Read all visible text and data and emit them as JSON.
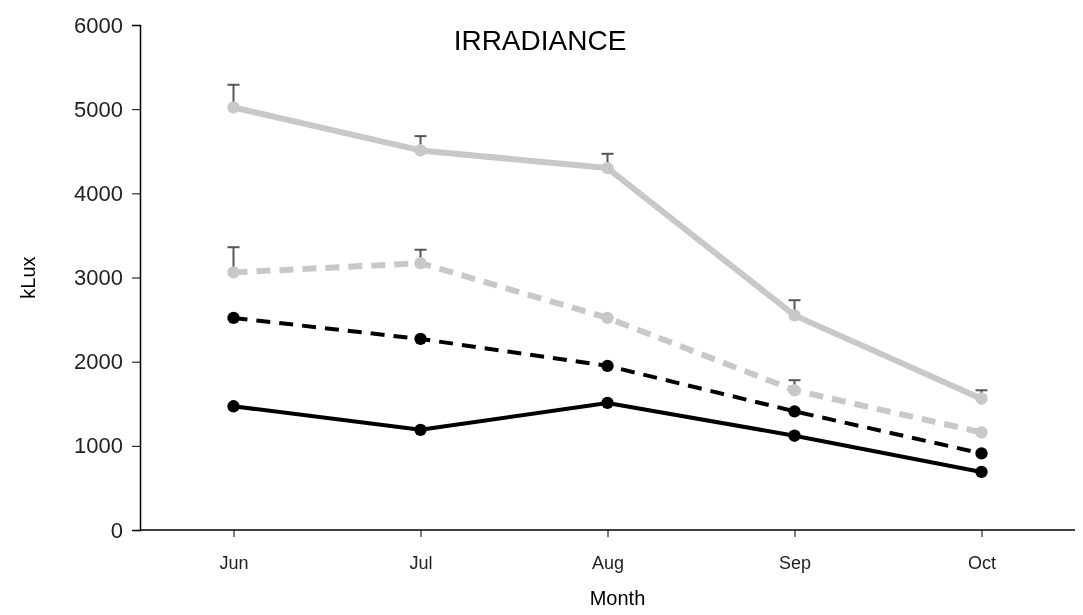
{
  "chart_data": {
    "type": "line",
    "title": "IRRADIANCE",
    "xlabel": "Month",
    "ylabel": "kLux",
    "categories": [
      "Jun",
      "Jul",
      "Aug",
      "Sep",
      "Oct"
    ],
    "ylim": [
      0,
      6000
    ],
    "yticks": [
      0,
      1000,
      2000,
      3000,
      4000,
      5000,
      6000
    ],
    "marker": "circle",
    "grid": false,
    "series": [
      {
        "color": "#c8c8c8",
        "line_style": "solid",
        "values": [
          5020,
          4510,
          4300,
          2550,
          1560
        ],
        "errors": [
          [
            5020,
            5290
          ],
          [
            4510,
            4680
          ],
          [
            4300,
            4470
          ],
          [
            2550,
            2730
          ],
          [
            1560,
            1660
          ]
        ]
      },
      {
        "color": "#c8c8c8",
        "line_style": "dashed",
        "values": [
          3060,
          3170,
          2520,
          1660,
          1160
        ],
        "errors": [
          [
            3060,
            3360
          ],
          [
            3170,
            3330
          ],
          null,
          [
            1660,
            1780
          ],
          null
        ]
      },
      {
        "color": "#000000",
        "line_style": "dashed",
        "values": [
          2520,
          2270,
          1950,
          1410,
          910
        ]
      },
      {
        "color": "#000000",
        "line_style": "solid",
        "values": [
          1470,
          1190,
          1510,
          1120,
          690
        ]
      }
    ]
  }
}
